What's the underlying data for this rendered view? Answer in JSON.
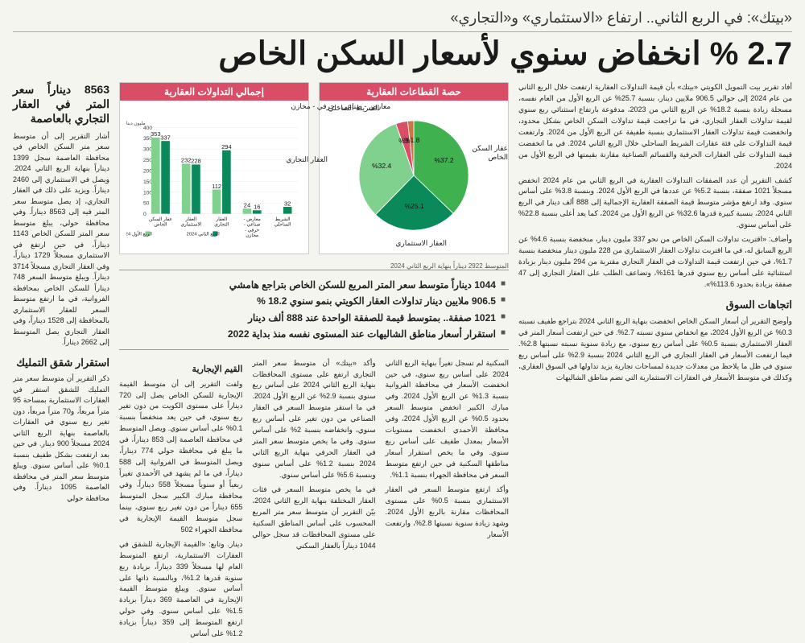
{
  "kicker": "«بيتك»: في الربع الثاني.. ارتفاع «الاستثماري» و«التجاري»",
  "headline": "2.7 % انخفاض سنوي لأسعار السكن الخاص",
  "pie": {
    "title": "حصة القطاعات العقارية",
    "bg": "#ffffff",
    "slices": [
      {
        "label": "عقار السكن الخاص",
        "value": 37.2,
        "pct": "%37.2",
        "color": "#3fb24f"
      },
      {
        "label": "العقار الاستثماري",
        "value": 25.1,
        "pct": "%25.1",
        "color": "#0a8a5a"
      },
      {
        "label": "العقار التجاري",
        "value": 32.4,
        "pct": "%32.4",
        "color": "#7fd18d"
      },
      {
        "label": "الشريط الساحلي",
        "value": 3.5,
        "pct": "%3.5",
        "color": "#d94d66"
      },
      {
        "label": "معارض - صناعي - حرفي - مخازن",
        "value": 1.8,
        "pct": "%1.8",
        "color": "#c87844"
      }
    ]
  },
  "bar": {
    "title": "إجمالي التداولات العقارية",
    "unit": "مليون دينار كويتي",
    "bg": "#ffffff",
    "ymax": 400,
    "ystep": 50,
    "grid_color": "#e2e2e2",
    "categories": [
      "عقار السكن الخاص",
      "العقار الاستثماري",
      "العقار التجاري",
      "معارض - صناعي - حرفي - مخازن",
      "الشريط الساحلي"
    ],
    "series": [
      {
        "name": "الربع الأول 2024",
        "color": "#7fd18d",
        "values": [
          353,
          232,
          112,
          24,
          0
        ]
      },
      {
        "name": "الربع الثاني 2024",
        "color": "#0a8a5a",
        "values": [
          337,
          228,
          294,
          16,
          32
        ]
      }
    ],
    "caption": "المتوسط 2922 ديناراً بنهاية الربع الثاني 2024"
  },
  "bullets": [
    "1044 ديناراً متوسط سعر المتر المربع للسكن الخاص بتراجع هامشي",
    "906.5 ملايين دينار تداولات العقار الكويتي بنمو سنوي 18.2 %",
    "1021 صفقة.. بمتوسط قيمة للصفقة الواحدة عند 888 ألف دينار",
    "استقرار أسعار مناطق الشاليهات عند المستوى نفسه منذ بداية 2022"
  ],
  "sidebar": {
    "box_title": "8563 ديناراً سعر المتر في العقار التجاري بالعاصمة",
    "p1": "أشار التقرير إلى أن متوسط سعر متر السكن الخاص في محافظة العاصمة سجل 1399 ديناراً بنهاية الربع الثاني 2024. ويصل في الاستثماري إلى 2460 ديناراً. ويزيد على ذلك في العقار التجاري، إذ يصل متوسط سعر المتر فيه إلى 8563 ديناراً. وفي محافظة حولي، يبلغ متوسط سعر المتر للسكن الخاص 1143 ديناراً، في حين ارتفع في الاستثماري مسجلاً 1729 ديناراً، وفي العقار التجاري مسجلاً 3714 ديناراً. ويبلغ متوسط السعر 748 ديناراً للسكن الخاص بمحافظة الفروانية، في ما ارتفع متوسط السعر للعقار الاستثماري بالمحافظة إلى 1528 ديناراً، وفي العقار التجاري يصل المتوسط إلى 2662 ديناراً.",
    "head2": "استقرار شقق التمليك",
    "p2": "ذكر التقرير أن متوسط سعر متر التمليك للشقق استقر في العقارات الاستثمارية بمساحة 95 متراً مربعاً، و70 متراً مربعاً، دون تغير ربع سنوي في العقارات بالعاصمة بنهاية الربع الثاني 2024 مسجلاً 900 دينار. في حين بعد ارتفعت بشكل طفيف بنسبة 0.1% على أساس سنوي. ويبلغ متوسط سعر المتر في محافظة العاصمة 1095 ديناراً. وفي محافظة حولي"
  },
  "col_left": {
    "p1": "أفاد تقرير بيت التمويل الكويتي «بيتك» بأن قيمة التداولات العقارية ارتفعت خلال الربع الثاني من عام 2024 إلى حوالي 906.5 ملايين دينار، بنسبة 25.7% عن الربع الأول من العام نفسه، مسجلة زيادة بنسبة 18.2% عن الربع الثاني من 2023، مدفوعة بارتفاع استثنائي ربع سنوي لقيمة تداولات العقار التجاري، في ما تراجعت قيمة تداولات السكن الخاص بشكل محدود، وانخفضت قيمة تداولات العقار الاستثماري بنسبة طفيفة عن الربع الأول من 2024. وارتفعت قيمة التداولات على فئة عقارات الشريط الساحلي خلال الربع الثاني 2024. في ما انخفضت قيمة التداولات على العقارات الحرفية والقسائم الصناعية مقارنة بقيمتها في الربع الأول من 2024.",
    "p2": "كشف التقرير أن عدد الصفقات التداولات العقارية في الربع الثاني من عام 2024 انخفض مسجلاً 1021 صفقة، بنسبة 5.2% عن عددها في الربع الأول 2024. وبنسبة 3.8% على أساس سنوي. وقد ارتفع مؤشر متوسط قيمة الصفقة العقارية الإجمالية إلى 888 ألف دينار في الربع الثاني 2024، بنسبة كبيرة قدرها 32.6% عن الربع الأول من 2024، كما يعد أعلى بنسبة 22.8% على أساس سنوي.",
    "p3": "وأضاف: «اقتربت تداولات السكن الخاص من نحو 337 مليون دينار، منخفضة بنسبة 4.6% عن الربع السابق له، في ما اقتربت تداولات العقار الاستثماري من 228 مليون دينار منخفضة بنسبة 1.7%، في حين ارتفعت قيمة التداولات في العقار التجاري مقتربة من 294 مليون دينار بزيادة استثنائية على أساس ربع سنوي قدرها 161%، وتضاعف الطلب على العقار التجاري إلى 47 صفقة بزيادة بحدود 113.6%».",
    "head_trends": "اتجاهات السوق",
    "p4": "وأوضح التقرير أن أسعار السكن الخاص انخفضت بنهاية الربع الثاني 2024 بتراجع طفيف نسبته 0.3% عن الربع الأول 2024، مع انخفاض سنوي نسبته 2.7%. في حين ارتفعت أسعار المتر في العقار الاستثماري بنسبة 0.5% على أساس ربع سنوي، مع زيادة سنوية نسبته نسبتها 2.8%. فيما ارتفعت الأسعار في العقار التجاري في الربع الثاني 2024 بنسبة 2.9% على أساس ربع سنوي في ظل ما يلاحظ من معدلات جديدة لمساحات تجارية يزيد تداولها في السوق العقاري، وكذلك في متوسط الأسعار في العقارات الاستثمارية التي تضم مناطق الشاليهات"
  },
  "mid": {
    "p1": "السكنية لم تسجل تغيراً بنهاية الربع الثاني 2024 على أساس ربع سنوي، في حين انخفضت الأسعار في محافظة الفروانية بنسبة 1.3% عن الربع الأول 2024. وفي مبارك الكبير انخفض متوسط السعر بحدود 0.5% عن الربع الأول 2024، وفي محافظة الأحمدي انخفضت مستويات الأسعار بمعدل طفيف على أساس ربع سنوي. وفي ما يخص استقرار أسعار مناطقها السكنية في حين ارتفع متوسط السعر في محافظة الجهراء بنسبة 1.1%.",
    "p2": "وأكد ارتفع متوسط السعر في العقار الاستثماري بنسبة 0.5% على مستوى المحافظات مقارنة بالربع الأول 2024. وشهد زيادة سنوية نسبتها 2.8%، وارتفعت الأسعار",
    "head_rent": "القيم الإيجارية",
    "p3": "وأكد «بيتك» أن متوسط سعر المتر التجاري ارتفع على مستوى المحافظات بنهاية الربع الثاني 2024 على أساس ربع سنوي بنسبة 2.9% عن الربع الأول 2024. في ما استقر متوسط السعر في العقار الصناعي من دون تغير على أساس ربع سنوي، وانخفاضه بنسبة 2% على أساس سنوي. وفي ما يخص متوسط سعر المتر في العقار الحرفي بنهاية الربع الثاني 2024 بنسبة 1.2% على أساس سنوي وبنسبة 5.6% على أساس سنوي.",
    "p4": "في ما يخص متوسط السعر في فئات العقار المختلفة بنهاية الربع الثاني 2024، بيّن التقرير أن متوسط سعر متر المربع المحسوب على أساس المناطق السكنية على مستوى المحافظات قد سجل حوالي 1044 ديناراً بالعقار السكني",
    "p5": "ولفت التقرير إلى أن متوسط القيمة الإيجارية للسكن الخاص يصل إلى 720 ديناراً على مستوى الكويت من دون تغير ربع سنوي، في حين يعد منخفضاً بنسبة 0.1% على أساس سنوي. ويصل المتوسط في محافظة العاصمة إلى 853 ديناراً، في ما يبلغ في محافظة حولي 774 ديناراً، ويصل المتوسط في الفروانية إلى 588 ديناراً، في ما لم يشهد في الأحمدي تغيراً ربعياً أو سنوياً مسجلاً 558 ديناراً، وفي محافظة مبارك الكبير سجل المتوسط 655 ديناراً من دون تغير ربع سنوي، بينما سجل متوسط القيمة الإيجارية في محافظة الجهراء 502",
    "p6": "دينار. وتابع: «القيمة الإيجارية للشقق في العقارات الاستثمارية، ارتفع المتوسط العام لها مسجلاً 339 ديناراً، بزيادة ربع سنوية قدرها 1.2%، وبالنسبة ذاتها على أساس سنوي. ويبلغ متوسط القيمة الإيجارية في العاصمة 369 ديناراً بزيادة 1.5% على أساس سنوي. وفي حولي ارتفع المتوسط إلى 359 ديناراً بزيادة 1.2% على أساس"
  },
  "colors": {
    "header_bar": "#d94d66",
    "series1": "#7fd18d",
    "series2": "#0a8a5a",
    "text": "#222222"
  }
}
